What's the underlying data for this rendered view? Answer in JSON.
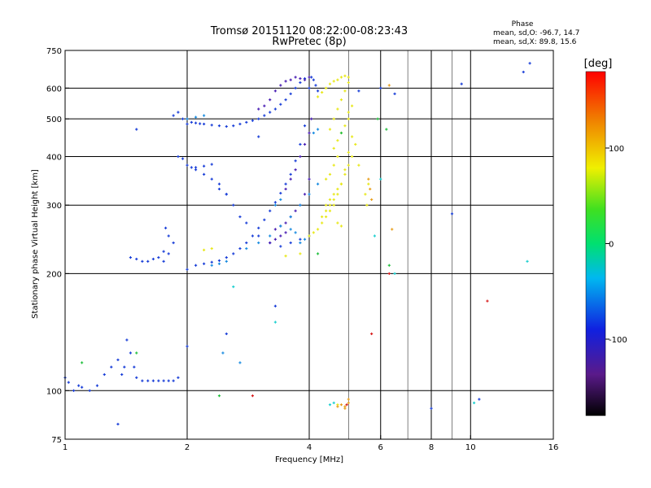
{
  "chart_data": {
    "type": "scatter",
    "title": "Tromsø 20151120 08:22:00-08:23:43",
    "subtitle": "RwPretec (8p)",
    "phase_info": {
      "heading": "Phase",
      "line_o": "mean, sd,O: -96.7, 14.7",
      "line_x": "mean, sd,X:  89.8, 15.6"
    },
    "xlabel": "Frequency [MHz]",
    "ylabel": "Stationary phase Virtual Height [km]",
    "x_scale": "log",
    "y_scale": "log",
    "xlim": [
      1,
      16
    ],
    "ylim": [
      75,
      750
    ],
    "x_ticks": [
      {
        "value": 1,
        "label": "1"
      },
      {
        "value": 2,
        "label": "2"
      },
      {
        "value": 4,
        "label": "4"
      },
      {
        "value": 6,
        "label": "6"
      },
      {
        "value": 8,
        "label": "8"
      },
      {
        "value": 10,
        "label": "10"
      },
      {
        "value": 16,
        "label": "16"
      }
    ],
    "x_gridlines": [
      2,
      4,
      6,
      8,
      10
    ],
    "x_minor_gridlines": [
      5,
      7,
      9
    ],
    "y_ticks": [
      {
        "value": 75,
        "label": "75"
      },
      {
        "value": 100,
        "label": "100"
      },
      {
        "value": 200,
        "label": "200"
      },
      {
        "value": 300,
        "label": "300"
      },
      {
        "value": 400,
        "label": "400"
      },
      {
        "value": 500,
        "label": "500"
      },
      {
        "value": 600,
        "label": "600"
      },
      {
        "value": 750,
        "label": "750"
      }
    ],
    "y_gridlines": [
      100,
      200,
      300,
      400,
      500,
      600
    ],
    "grid": true,
    "colorbar": {
      "label": "[deg]",
      "range": [
        -180,
        180
      ],
      "ticks": [
        {
          "value": 100,
          "label": "100"
        },
        {
          "value": 0,
          "label": "0"
        },
        {
          "value": -100,
          "label": "-100"
        }
      ]
    },
    "series": [
      {
        "name": "",
        "color": "#1a3fd8",
        "phase_deg": -95,
        "x": [
          1.0,
          1.02,
          1.05,
          1.08,
          1.1,
          1.15,
          1.2,
          1.25,
          1.3,
          1.35,
          1.38,
          1.4,
          1.42,
          1.45,
          1.48,
          1.5,
          1.55,
          1.6,
          1.65,
          1.7,
          1.75,
          1.8,
          1.85,
          1.9,
          1.45,
          1.5,
          1.55,
          1.6,
          1.65,
          1.7,
          1.75,
          1.8,
          1.75,
          1.77,
          1.8,
          1.85,
          1.9,
          1.95,
          2.0,
          2.05,
          2.1,
          2.15,
          2.2,
          2.3,
          2.4,
          2.5,
          2.6,
          2.7,
          2.8,
          2.9,
          3.0,
          3.1,
          3.2,
          3.3,
          3.4,
          3.5,
          3.6,
          3.7,
          3.8,
          3.9,
          2.0,
          2.1,
          2.2,
          2.3,
          2.4,
          2.5,
          2.6,
          2.7,
          2.8,
          2.9,
          3.0,
          3.1,
          3.2,
          3.3,
          3.4,
          3.5,
          3.6,
          3.7,
          3.8,
          3.9,
          2.0,
          2.05,
          2.1,
          2.2,
          2.3,
          2.4,
          2.5,
          2.6,
          2.7,
          2.8,
          3.0,
          3.2,
          3.4,
          3.6,
          3.8,
          4.0,
          4.05,
          4.1,
          4.15,
          4.2,
          1.85,
          1.9,
          1.95,
          2.1,
          2.2,
          2.3,
          2.4,
          2.5
        ],
        "y": [
          108,
          105,
          100,
          103,
          102,
          100,
          103,
          110,
          115,
          120,
          110,
          115,
          135,
          125,
          115,
          108,
          106,
          106,
          106,
          106,
          106,
          106,
          106,
          108,
          220,
          218,
          215,
          215,
          218,
          220,
          215,
          250,
          228,
          262,
          225,
          240,
          400,
          395,
          485,
          490,
          488,
          486,
          485,
          482,
          480,
          478,
          480,
          485,
          490,
          495,
          500,
          510,
          520,
          530,
          545,
          560,
          580,
          600,
          620,
          635,
          205,
          210,
          212,
          214,
          216,
          220,
          225,
          232,
          240,
          250,
          262,
          275,
          290,
          305,
          322,
          340,
          360,
          390,
          430,
          480,
          380,
          375,
          370,
          360,
          350,
          340,
          320,
          300,
          280,
          270,
          250,
          240,
          235,
          240,
          245,
          600,
          640,
          630,
          610,
          590,
          510,
          520,
          500,
          375,
          378,
          382,
          330,
          320
        ]
      },
      {
        "name": "",
        "color": "#4a1fb4",
        "phase_deg": -120,
        "x": [
          3.0,
          3.1,
          3.2,
          3.3,
          3.4,
          3.5,
          3.6,
          3.7,
          3.8,
          3.9,
          4.0,
          3.5,
          3.6,
          3.7,
          3.8,
          3.9,
          4.0,
          4.05,
          3.3,
          3.4,
          3.5,
          3.6,
          3.7,
          3.8,
          3.9,
          4.0,
          3.2,
          3.3,
          3.4,
          3.5
        ],
        "y": [
          530,
          540,
          560,
          590,
          610,
          625,
          630,
          640,
          635,
          630,
          640,
          330,
          350,
          370,
          400,
          430,
          460,
          500,
          260,
          265,
          270,
          280,
          290,
          300,
          320,
          350,
          240,
          245,
          250,
          255
        ]
      },
      {
        "name": "",
        "color": "#1a8ce0",
        "phase_deg": -60,
        "x": [
          3.8,
          3.9,
          4.0,
          3.6,
          3.7,
          4.1,
          4.2,
          3.3,
          3.4,
          2.3,
          2.4,
          2.5,
          2.45,
          2.7,
          2.8,
          3.0,
          3.2,
          3.4,
          3.6,
          3.8,
          4.0,
          4.2,
          2.0,
          2.1,
          2.2
        ],
        "y": [
          240,
          245,
          250,
          260,
          255,
          460,
          470,
          300,
          310,
          210,
          212,
          215,
          125,
          118,
          232,
          240,
          250,
          265,
          280,
          300,
          320,
          340,
          500,
          505,
          510
        ]
      },
      {
        "name": "",
        "color": "#e8e81a",
        "phase_deg": 95,
        "x": [
          4.2,
          4.3,
          4.4,
          4.5,
          4.6,
          4.7,
          4.8,
          4.9,
          5.0,
          4.4,
          4.5,
          4.6,
          4.7,
          4.8,
          4.9,
          5.0,
          5.1,
          4.3,
          4.4,
          4.5,
          4.6,
          4.7,
          4.8,
          4.9,
          5.0,
          5.1,
          4.5,
          4.6,
          4.7,
          4.8,
          4.9,
          5.0,
          4.6,
          4.7,
          4.8,
          4.9,
          5.0,
          4.4,
          4.5,
          4.6,
          4.7,
          5.0,
          5.1,
          5.2,
          5.3,
          5.5,
          5.6,
          5.55,
          4.0,
          4.1,
          4.2,
          4.3,
          4.4,
          4.5,
          4.6,
          4.7,
          4.8,
          2.2,
          2.3,
          3.5,
          3.8,
          4.7
        ],
        "y": [
          570,
          585,
          600,
          615,
          625,
          630,
          640,
          645,
          640,
          300,
          310,
          320,
          330,
          340,
          360,
          380,
          400,
          280,
          290,
          300,
          310,
          320,
          340,
          370,
          410,
          450,
          470,
          500,
          530,
          560,
          590,
          620,
          420,
          440,
          460,
          480,
          500,
          350,
          360,
          380,
          400,
          520,
          540,
          430,
          380,
          320,
          340,
          300,
          250,
          255,
          260,
          270,
          280,
          290,
          300,
          270,
          265,
          230,
          232,
          222,
          225,
          92
        ]
      },
      {
        "name": "",
        "color": "#e8a020",
        "phase_deg": 130,
        "x": [
          4.7,
          4.8,
          4.9,
          5.0,
          5.6,
          5.65,
          5.7,
          6.3,
          6.4,
          5.0,
          4.9
        ],
        "y": [
          91,
          92,
          91,
          93,
          350,
          330,
          310,
          610,
          260,
          95,
          90
        ]
      },
      {
        "name": "",
        "color": "#24c040",
        "phase_deg": 40,
        "x": [
          1.1,
          1.5,
          2.4,
          4.8,
          5.9,
          6.2,
          6.3,
          4.2
        ],
        "y": [
          118,
          125,
          97,
          460,
          500,
          470,
          210,
          225
        ]
      },
      {
        "name": "",
        "color": "#20d0d0",
        "phase_deg": -20,
        "x": [
          4.5,
          4.6,
          6.0,
          6.5,
          10.2,
          13.8,
          5.8,
          2.6,
          3.3
        ],
        "y": [
          92,
          93,
          350,
          200,
          93,
          215,
          250,
          185,
          150
        ]
      },
      {
        "name": "",
        "color": "#d82020",
        "phase_deg": 170,
        "x": [
          6.3,
          2.9,
          4.95,
          11.0,
          5.7
        ],
        "y": [
          200,
          97,
          92,
          170,
          140
        ]
      },
      {
        "name": "",
        "color": "#1a3fd8",
        "phase_deg": -95,
        "x": [
          5.3,
          6.0,
          6.5,
          9.0,
          9.5,
          10.5,
          14.0,
          13.5,
          8.0,
          3.3,
          1.35,
          1.5,
          2.0,
          2.5,
          3.0
        ],
        "y": [
          590,
          600,
          580,
          285,
          615,
          95,
          695,
          660,
          90,
          165,
          82,
          470,
          130,
          140,
          450
        ]
      }
    ]
  }
}
